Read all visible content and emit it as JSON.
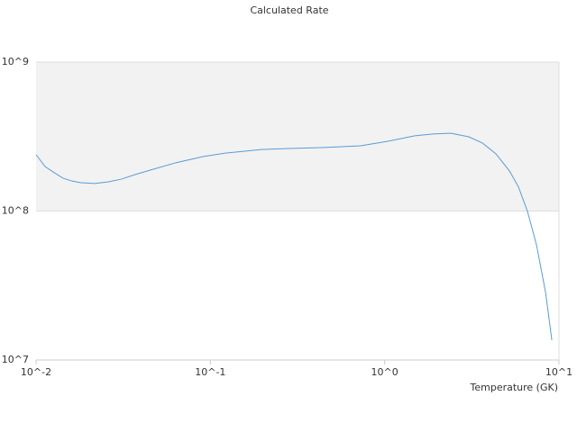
{
  "chart_data": {
    "type": "line",
    "title": "Calculated Rate",
    "x_label": "Temperature (GK)",
    "xscale": "log",
    "yscale": "log",
    "grid": true,
    "bands": true,
    "x": [
      0.01,
      0.01126,
      0.0127,
      0.0143,
      0.0161,
      0.0181,
      0.0217,
      0.0259,
      0.031,
      0.0371,
      0.0471,
      0.0634,
      0.0906,
      0.122,
      0.196,
      0.281,
      0.452,
      0.728,
      1.04,
      1.49,
      1.89,
      2.4,
      3.04,
      3.64,
      4.35,
      5.2,
      5.86,
      6.6,
      7.43,
      8.38,
      9.1
    ],
    "series": [
      {
        "name": "Calculated Rate",
        "color": "#5b9bd5",
        "values": [
          239000000,
          199000000,
          181000000,
          166000000,
          159000000,
          155000000,
          153000000,
          157000000,
          164000000,
          176000000,
          191000000,
          211000000,
          232000000,
          245000000,
          259000000,
          263000000,
          267000000,
          274000000,
          294000000,
          320000000,
          329000000,
          333000000,
          315000000,
          286000000,
          242000000,
          186000000,
          145000000,
          99300000,
          59300000,
          28400000,
          13600000
        ]
      }
    ],
    "xlim": [
      0.01,
      10
    ],
    "ylim": [
      10000000,
      1000000000
    ],
    "xticks": [
      {
        "value": 0.01,
        "label": "10^-2"
      },
      {
        "value": 0.1,
        "label": "10^-1"
      },
      {
        "value": 1,
        "label": "10^0"
      },
      {
        "value": 10,
        "label": "10^1"
      }
    ],
    "yticks": [
      {
        "value": 10000000,
        "label": "10^7"
      },
      {
        "value": 100000000,
        "label": "10^8"
      },
      {
        "value": 1000000000,
        "label": "10^9"
      }
    ]
  }
}
